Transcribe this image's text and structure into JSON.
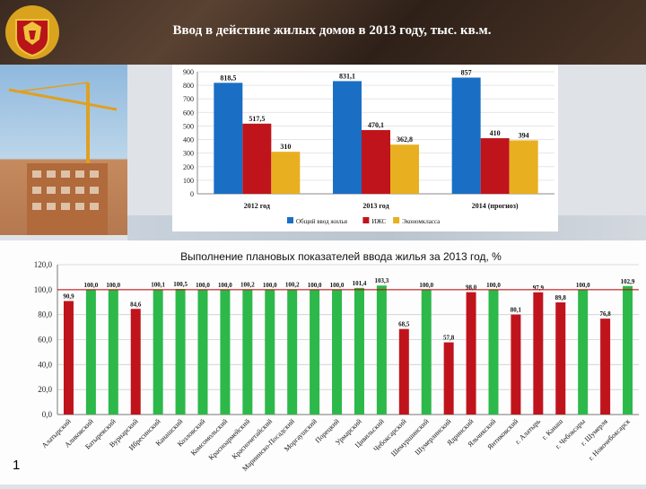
{
  "header": {
    "title": "Ввод в действие жилых домов в 2013 году, тыс. кв.м."
  },
  "page_number": "1",
  "colors": {
    "blue": "#1a6fc4",
    "red": "#c0141c",
    "yellow": "#e8b020",
    "green": "#2db84a",
    "target_line": "#c00000"
  },
  "chart_data": [
    {
      "type": "bar",
      "title": "",
      "categories": [
        "2012 год",
        "2013 год",
        "2014 (прогноз)"
      ],
      "series": [
        {
          "name": "Общий ввод жилья",
          "values": [
            818.5,
            831.1,
            857
          ]
        },
        {
          "name": "ИЖС",
          "values": [
            517.5,
            470.1,
            410
          ]
        },
        {
          "name": "Экономкласса",
          "values": [
            310,
            362.8,
            394
          ]
        }
      ],
      "value_labels": [
        [
          "818,5",
          "517,5",
          "310"
        ],
        [
          "831,1",
          "470,1",
          "362,8"
        ],
        [
          "857",
          "410",
          "394"
        ]
      ],
      "yticks": [
        "0",
        "100",
        "200",
        "300",
        "400",
        "500",
        "600",
        "700",
        "800",
        "900"
      ],
      "ylim": [
        0,
        900
      ],
      "legend": "bottom"
    },
    {
      "type": "bar",
      "title": "Выполнение плановых показателей ввода жилья за 2013 год, %",
      "categories": [
        "Алатырский",
        "Аликовский",
        "Батыревский",
        "Вурнарский",
        "Ибресинский",
        "Канашский",
        "Козловский",
        "Комсомольский",
        "Красноармейский",
        "Красночетайский",
        "Мариинско-Посадский",
        "Моргаушский",
        "Порецкий",
        "Урмарский",
        "Цивильский",
        "Чебоксарский",
        "Шемуршинский",
        "Шумерлинский",
        "Ядринский",
        "Яльчикский",
        "Янтиковский",
        "г. Алатырь",
        "г. Канаш",
        "г. Чебоксары",
        "г. Шумерля",
        "г. Новочебоксарск"
      ],
      "values": [
        90.9,
        100.0,
        100.0,
        84.6,
        100.1,
        100.5,
        100.0,
        100.0,
        100.2,
        100.0,
        100.2,
        100.0,
        100.0,
        101.4,
        103.3,
        68.5,
        100.0,
        57.8,
        98.0,
        100.0,
        80.1,
        97.9,
        89.8,
        100.0,
        76.8,
        102.9
      ],
      "value_labels": [
        "90,9",
        "100,0",
        "100,0",
        "84,6",
        "100,1",
        "100,5",
        "100,0",
        "100,0",
        "100,2",
        "100,0",
        "100,2",
        "100,0",
        "100,0",
        "101,4",
        "103,3",
        "68,5",
        "100,0",
        "57,8",
        "98,0",
        "100,0",
        "80,1",
        "97,9",
        "89,8",
        "100,0",
        "76,8",
        "102,9"
      ],
      "yticks": [
        "0,0",
        "20,0",
        "40,0",
        "60,0",
        "80,0",
        "100,0",
        "120,0"
      ],
      "ylim": [
        0,
        120
      ],
      "target_line": 100
    }
  ]
}
